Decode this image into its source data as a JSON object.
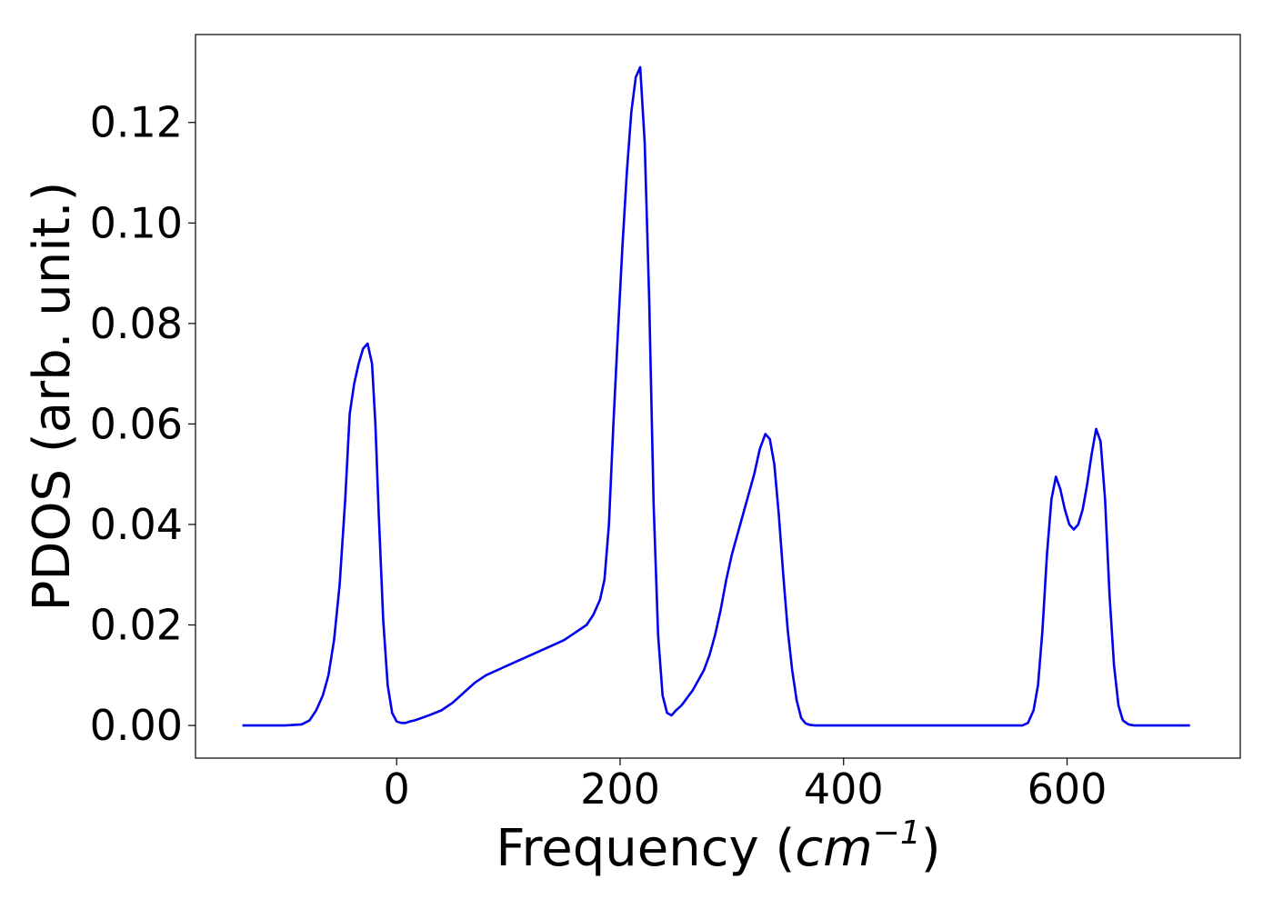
{
  "chart_data": {
    "type": "line",
    "xlabel": "Frequency (",
    "xlabel_var": "cm",
    "xlabel_exp": "−1",
    "xlabel_close": ")",
    "ylabel": "PDOS (arb. unit.)",
    "xlim": [
      -180,
      755
    ],
    "ylim": [
      -0.0065,
      0.1375
    ],
    "xticks": [
      0,
      200,
      400,
      600
    ],
    "xtick_labels": [
      "0",
      "200",
      "400",
      "600"
    ],
    "yticks": [
      0.0,
      0.02,
      0.04,
      0.06,
      0.08,
      0.1,
      0.12
    ],
    "ytick_labels": [
      "0.00",
      "0.02",
      "0.04",
      "0.06",
      "0.08",
      "0.10",
      "0.12"
    ],
    "grid": false,
    "legend": "none",
    "line_color": "#0000ee",
    "series": [
      {
        "x": [
          -138,
          -100,
          -85,
          -78,
          -72,
          -66,
          -61,
          -56,
          -51,
          -46,
          -42,
          -38,
          -34,
          -30,
          -26,
          -22,
          -19,
          -16,
          -12,
          -8,
          -4,
          0,
          4,
          8,
          12,
          16,
          20,
          25,
          30,
          40,
          50,
          60,
          70,
          80,
          90,
          95,
          100,
          105,
          110,
          120,
          130,
          140,
          150,
          160,
          170,
          176,
          182,
          186,
          190,
          194,
          198,
          202,
          206,
          210,
          214,
          218,
          222,
          226,
          230,
          234,
          238,
          242,
          246,
          250,
          255,
          260,
          265,
          270,
          275,
          280,
          285,
          290,
          295,
          300,
          305,
          310,
          315,
          320,
          325,
          330,
          334,
          338,
          342,
          346,
          350,
          354,
          358,
          362,
          366,
          370,
          375,
          380,
          390,
          500,
          560,
          565,
          570,
          574,
          578,
          582,
          586,
          590,
          594,
          598,
          602,
          606,
          610,
          614,
          618,
          622,
          626,
          630,
          634,
          638,
          642,
          646,
          650,
          655,
          660,
          680,
          710
        ],
        "y": [
          0.0,
          0.0,
          0.0002,
          0.001,
          0.003,
          0.006,
          0.01,
          0.017,
          0.028,
          0.045,
          0.062,
          0.068,
          0.072,
          0.075,
          0.076,
          0.072,
          0.06,
          0.042,
          0.021,
          0.008,
          0.0025,
          0.0008,
          0.0005,
          0.0005,
          0.0008,
          0.001,
          0.0013,
          0.0017,
          0.0021,
          0.003,
          0.0045,
          0.0065,
          0.0085,
          0.01,
          0.011,
          0.0115,
          0.012,
          0.0125,
          0.013,
          0.014,
          0.015,
          0.016,
          0.017,
          0.0185,
          0.02,
          0.022,
          0.025,
          0.029,
          0.04,
          0.06,
          0.078,
          0.095,
          0.11,
          0.122,
          0.129,
          0.131,
          0.116,
          0.085,
          0.044,
          0.018,
          0.006,
          0.0025,
          0.002,
          0.003,
          0.004,
          0.0055,
          0.007,
          0.009,
          0.011,
          0.014,
          0.018,
          0.023,
          0.029,
          0.034,
          0.038,
          0.042,
          0.046,
          0.05,
          0.055,
          0.058,
          0.057,
          0.052,
          0.042,
          0.03,
          0.019,
          0.011,
          0.005,
          0.0015,
          0.0004,
          0.0001,
          0.0,
          0.0,
          0.0,
          0.0,
          0.0,
          0.0005,
          0.003,
          0.008,
          0.019,
          0.034,
          0.045,
          0.0495,
          0.047,
          0.043,
          0.04,
          0.039,
          0.04,
          0.043,
          0.048,
          0.054,
          0.059,
          0.0565,
          0.045,
          0.026,
          0.012,
          0.004,
          0.001,
          0.0002,
          0.0,
          0.0,
          0.0
        ]
      }
    ]
  }
}
